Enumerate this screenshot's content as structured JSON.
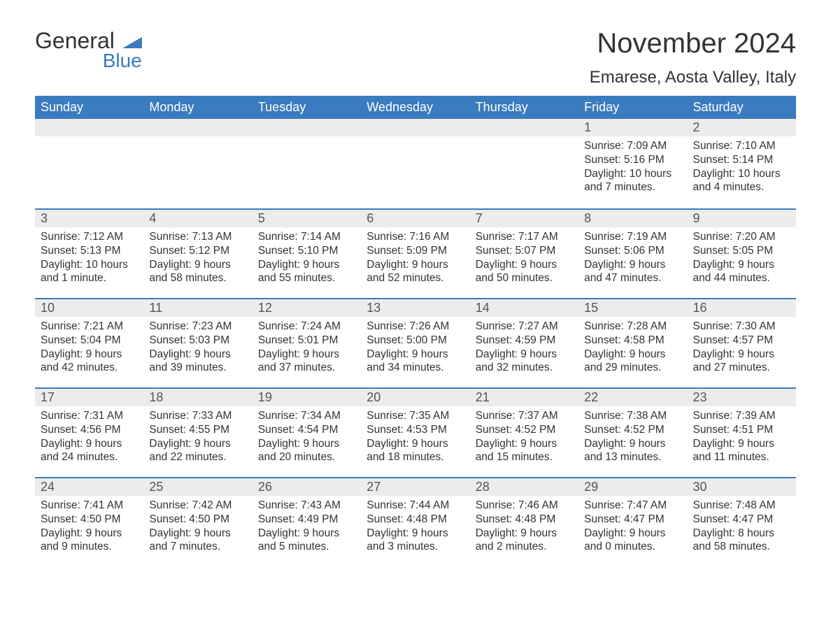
{
  "logo": {
    "general": "General",
    "blue": "Blue",
    "icon_color": "#3b7bbf"
  },
  "title": "November 2024",
  "location": "Emarese, Aosta Valley, Italy",
  "colors": {
    "header_bg": "#3b7bbf",
    "header_text": "#ffffff",
    "day_border": "#3b7bbf",
    "day_num_bg": "#ececec",
    "text": "#333333",
    "background": "#ffffff"
  },
  "typography": {
    "title_fontsize": 40,
    "location_fontsize": 24,
    "header_fontsize": 18,
    "daynum_fontsize": 18,
    "body_fontsize": 15.5
  },
  "weekdays": [
    "Sunday",
    "Monday",
    "Tuesday",
    "Wednesday",
    "Thursday",
    "Friday",
    "Saturday"
  ],
  "weeks": [
    [
      null,
      null,
      null,
      null,
      null,
      {
        "day": "1",
        "sunrise": "Sunrise: 7:09 AM",
        "sunset": "Sunset: 5:16 PM",
        "daylight": "Daylight: 10 hours and 7 minutes."
      },
      {
        "day": "2",
        "sunrise": "Sunrise: 7:10 AM",
        "sunset": "Sunset: 5:14 PM",
        "daylight": "Daylight: 10 hours and 4 minutes."
      }
    ],
    [
      {
        "day": "3",
        "sunrise": "Sunrise: 7:12 AM",
        "sunset": "Sunset: 5:13 PM",
        "daylight": "Daylight: 10 hours and 1 minute."
      },
      {
        "day": "4",
        "sunrise": "Sunrise: 7:13 AM",
        "sunset": "Sunset: 5:12 PM",
        "daylight": "Daylight: 9 hours and 58 minutes."
      },
      {
        "day": "5",
        "sunrise": "Sunrise: 7:14 AM",
        "sunset": "Sunset: 5:10 PM",
        "daylight": "Daylight: 9 hours and 55 minutes."
      },
      {
        "day": "6",
        "sunrise": "Sunrise: 7:16 AM",
        "sunset": "Sunset: 5:09 PM",
        "daylight": "Daylight: 9 hours and 52 minutes."
      },
      {
        "day": "7",
        "sunrise": "Sunrise: 7:17 AM",
        "sunset": "Sunset: 5:07 PM",
        "daylight": "Daylight: 9 hours and 50 minutes."
      },
      {
        "day": "8",
        "sunrise": "Sunrise: 7:19 AM",
        "sunset": "Sunset: 5:06 PM",
        "daylight": "Daylight: 9 hours and 47 minutes."
      },
      {
        "day": "9",
        "sunrise": "Sunrise: 7:20 AM",
        "sunset": "Sunset: 5:05 PM",
        "daylight": "Daylight: 9 hours and 44 minutes."
      }
    ],
    [
      {
        "day": "10",
        "sunrise": "Sunrise: 7:21 AM",
        "sunset": "Sunset: 5:04 PM",
        "daylight": "Daylight: 9 hours and 42 minutes."
      },
      {
        "day": "11",
        "sunrise": "Sunrise: 7:23 AM",
        "sunset": "Sunset: 5:03 PM",
        "daylight": "Daylight: 9 hours and 39 minutes."
      },
      {
        "day": "12",
        "sunrise": "Sunrise: 7:24 AM",
        "sunset": "Sunset: 5:01 PM",
        "daylight": "Daylight: 9 hours and 37 minutes."
      },
      {
        "day": "13",
        "sunrise": "Sunrise: 7:26 AM",
        "sunset": "Sunset: 5:00 PM",
        "daylight": "Daylight: 9 hours and 34 minutes."
      },
      {
        "day": "14",
        "sunrise": "Sunrise: 7:27 AM",
        "sunset": "Sunset: 4:59 PM",
        "daylight": "Daylight: 9 hours and 32 minutes."
      },
      {
        "day": "15",
        "sunrise": "Sunrise: 7:28 AM",
        "sunset": "Sunset: 4:58 PM",
        "daylight": "Daylight: 9 hours and 29 minutes."
      },
      {
        "day": "16",
        "sunrise": "Sunrise: 7:30 AM",
        "sunset": "Sunset: 4:57 PM",
        "daylight": "Daylight: 9 hours and 27 minutes."
      }
    ],
    [
      {
        "day": "17",
        "sunrise": "Sunrise: 7:31 AM",
        "sunset": "Sunset: 4:56 PM",
        "daylight": "Daylight: 9 hours and 24 minutes."
      },
      {
        "day": "18",
        "sunrise": "Sunrise: 7:33 AM",
        "sunset": "Sunset: 4:55 PM",
        "daylight": "Daylight: 9 hours and 22 minutes."
      },
      {
        "day": "19",
        "sunrise": "Sunrise: 7:34 AM",
        "sunset": "Sunset: 4:54 PM",
        "daylight": "Daylight: 9 hours and 20 minutes."
      },
      {
        "day": "20",
        "sunrise": "Sunrise: 7:35 AM",
        "sunset": "Sunset: 4:53 PM",
        "daylight": "Daylight: 9 hours and 18 minutes."
      },
      {
        "day": "21",
        "sunrise": "Sunrise: 7:37 AM",
        "sunset": "Sunset: 4:52 PM",
        "daylight": "Daylight: 9 hours and 15 minutes."
      },
      {
        "day": "22",
        "sunrise": "Sunrise: 7:38 AM",
        "sunset": "Sunset: 4:52 PM",
        "daylight": "Daylight: 9 hours and 13 minutes."
      },
      {
        "day": "23",
        "sunrise": "Sunrise: 7:39 AM",
        "sunset": "Sunset: 4:51 PM",
        "daylight": "Daylight: 9 hours and 11 minutes."
      }
    ],
    [
      {
        "day": "24",
        "sunrise": "Sunrise: 7:41 AM",
        "sunset": "Sunset: 4:50 PM",
        "daylight": "Daylight: 9 hours and 9 minutes."
      },
      {
        "day": "25",
        "sunrise": "Sunrise: 7:42 AM",
        "sunset": "Sunset: 4:50 PM",
        "daylight": "Daylight: 9 hours and 7 minutes."
      },
      {
        "day": "26",
        "sunrise": "Sunrise: 7:43 AM",
        "sunset": "Sunset: 4:49 PM",
        "daylight": "Daylight: 9 hours and 5 minutes."
      },
      {
        "day": "27",
        "sunrise": "Sunrise: 7:44 AM",
        "sunset": "Sunset: 4:48 PM",
        "daylight": "Daylight: 9 hours and 3 minutes."
      },
      {
        "day": "28",
        "sunrise": "Sunrise: 7:46 AM",
        "sunset": "Sunset: 4:48 PM",
        "daylight": "Daylight: 9 hours and 2 minutes."
      },
      {
        "day": "29",
        "sunrise": "Sunrise: 7:47 AM",
        "sunset": "Sunset: 4:47 PM",
        "daylight": "Daylight: 9 hours and 0 minutes."
      },
      {
        "day": "30",
        "sunrise": "Sunrise: 7:48 AM",
        "sunset": "Sunset: 4:47 PM",
        "daylight": "Daylight: 8 hours and 58 minutes."
      }
    ]
  ]
}
